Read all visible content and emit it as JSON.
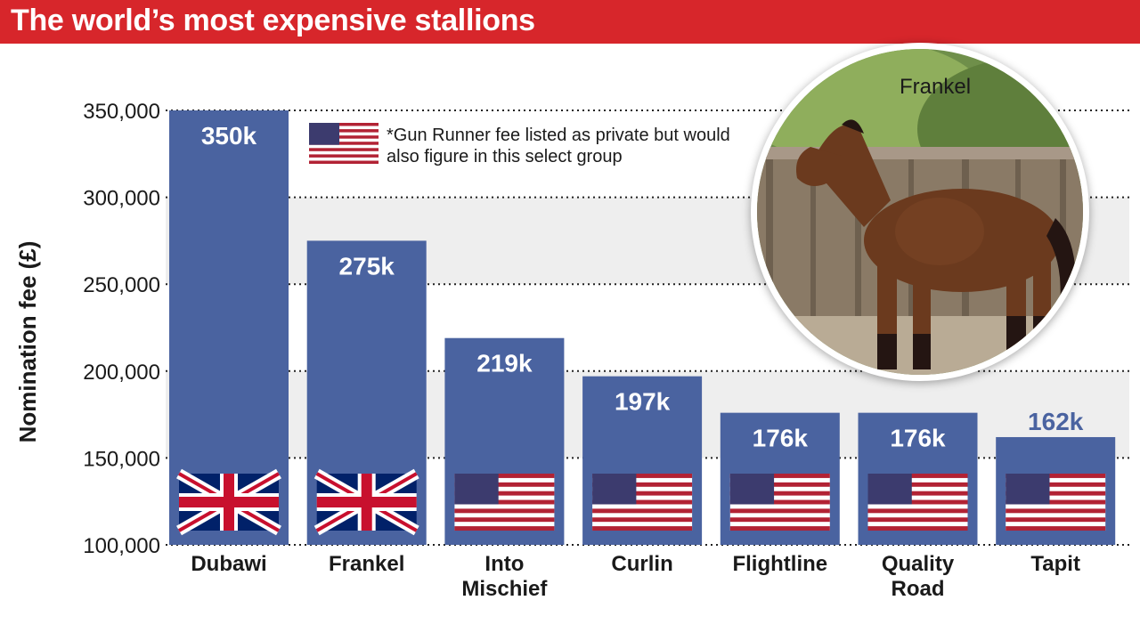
{
  "title": "The world’s most expensive stallions",
  "note": "*Gun Runner fee listed as private but would also figure in this select group",
  "photo": {
    "label": "Frankel"
  },
  "colors": {
    "title_bar": "#d7262b",
    "bar": "#4a63a0",
    "band": "#eeeeee",
    "flag_red": "#b22234",
    "flag_blue": "#3c3b6e",
    "uk_blue": "#012169",
    "uk_red": "#c8102e"
  },
  "chart_data": {
    "type": "bar",
    "title": "The world’s most expensive stallions",
    "xlabel": "",
    "ylabel": "Nomination fee (£)",
    "ylim": [
      100000,
      350000
    ],
    "yticks": [
      100000,
      150000,
      200000,
      250000,
      300000,
      350000
    ],
    "ytick_labels": [
      "100,000",
      "150,000",
      "200,000",
      "250,000",
      "300,000",
      "350,000"
    ],
    "grid": true,
    "categories": [
      "Dubawi",
      "Frankel",
      "Into Mischief",
      "Curlin",
      "Flightline",
      "Quality Road",
      "Tapit"
    ],
    "category_lines": [
      [
        "Dubawi"
      ],
      [
        "Frankel"
      ],
      [
        "Into",
        "Mischief"
      ],
      [
        "Curlin"
      ],
      [
        "Flightline"
      ],
      [
        "Quality",
        "Road"
      ],
      [
        "Tapit"
      ]
    ],
    "values": [
      350000,
      275000,
      219000,
      197000,
      176000,
      176000,
      162000
    ],
    "data_labels": [
      "350k",
      "275k",
      "219k",
      "197k",
      "176k",
      "176k",
      "162k"
    ],
    "flags": [
      "uk-flag",
      "uk-flag",
      "us-flag",
      "us-flag",
      "us-flag",
      "us-flag",
      "us-flag"
    ]
  }
}
